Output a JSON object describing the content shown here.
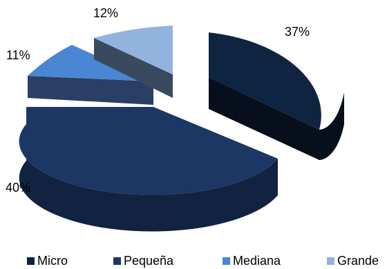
{
  "chart_data": {
    "type": "pie",
    "style": "3d-exploded",
    "categories": [
      "Micro",
      "Pequeña",
      "Mediana",
      "Grande"
    ],
    "values": [
      37,
      40,
      11,
      12
    ],
    "labels": [
      "37%",
      "40%",
      "11%",
      "12%"
    ],
    "colors": [
      "#0f2440",
      "#1c3763",
      "#4a86d3",
      "#93b3df"
    ],
    "title": "",
    "legend_position": "bottom"
  }
}
